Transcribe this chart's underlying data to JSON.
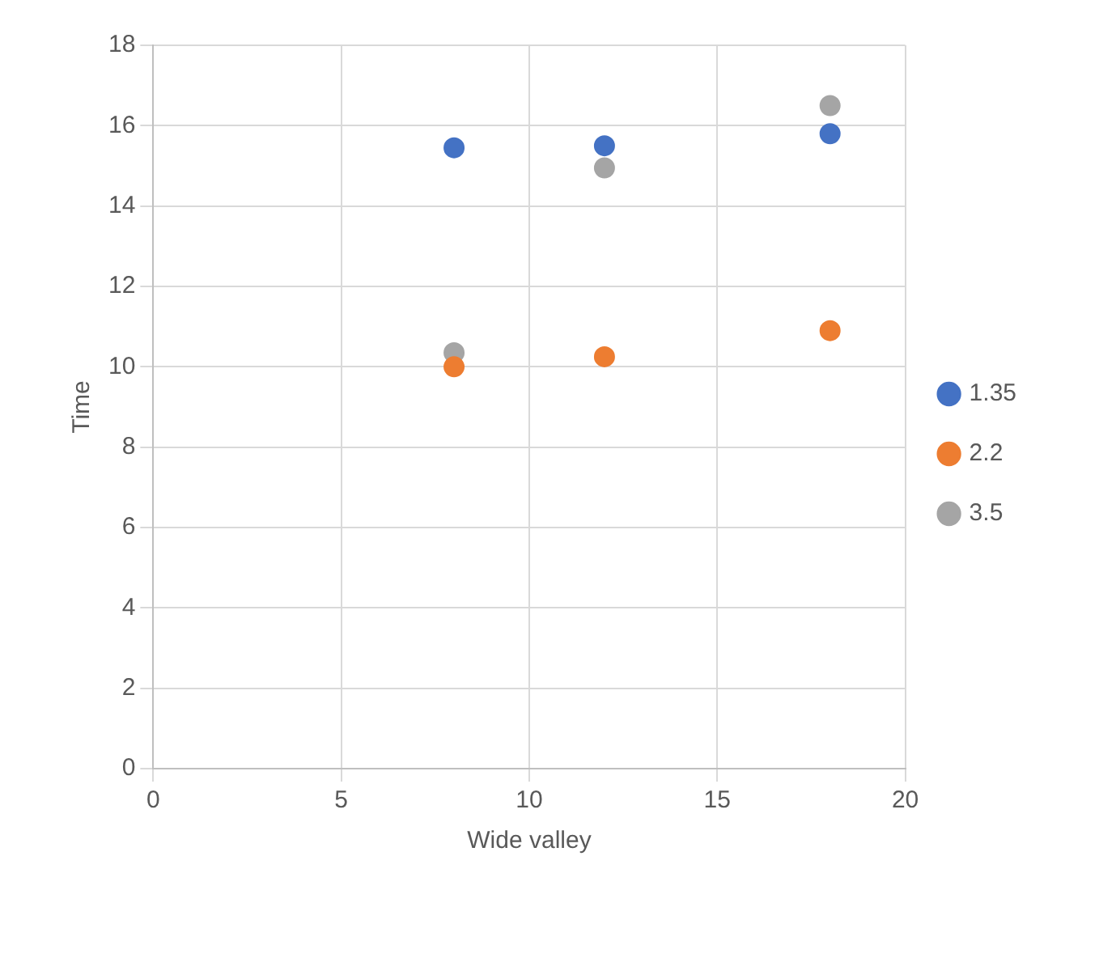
{
  "chart_data": {
    "type": "scatter",
    "xlabel": "Wide valley",
    "ylabel": "Time",
    "series": [
      {
        "name": "1.35",
        "color": "#4472c4",
        "x": [
          8,
          12,
          18
        ],
        "values": [
          15.45,
          15.5,
          15.8
        ]
      },
      {
        "name": "2.2",
        "color": "#ed7d31",
        "x": [
          8,
          12,
          18
        ],
        "values": [
          10.0,
          10.25,
          10.9
        ]
      },
      {
        "name": "3.5",
        "color": "#a5a5a5",
        "x": [
          8,
          12,
          18
        ],
        "values": [
          10.35,
          14.95,
          16.5
        ]
      }
    ],
    "xlim": [
      0,
      20
    ],
    "xticks": [
      0,
      5,
      10,
      15,
      20
    ],
    "ylim": [
      0,
      18
    ],
    "yticks": [
      0,
      2,
      4,
      6,
      8,
      10,
      12,
      14,
      16,
      18
    ],
    "grid": true,
    "legend": "right",
    "marker": "circle"
  }
}
